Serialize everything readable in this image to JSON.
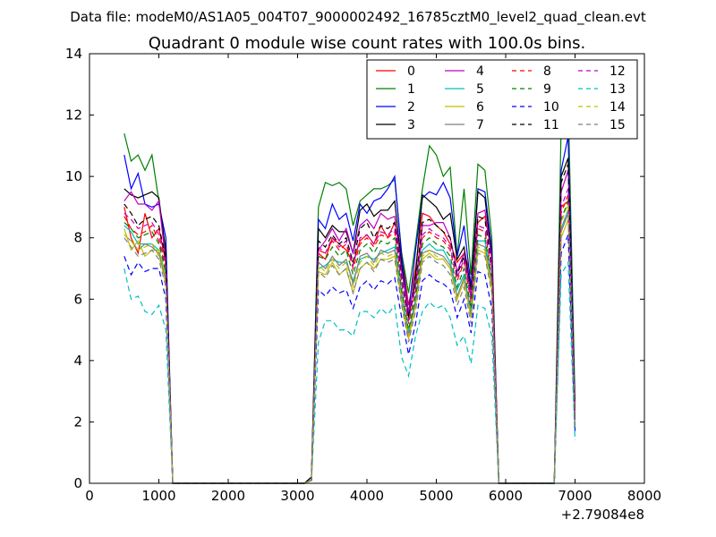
{
  "suptitle": "Data file: modeM0/AS1A05_004T07_9000002492_16785cztM0_level2_quad_clean.evt",
  "chart_data": {
    "type": "line",
    "title": "Quadrant 0 module wise count rates with 100.0s bins.",
    "xlabel": "",
    "ylabel": "",
    "xlim": [
      0,
      8000
    ],
    "ylim": [
      0,
      14
    ],
    "x_offset_label": "+2.79084e8",
    "xticks": [
      0,
      1000,
      2000,
      3000,
      4000,
      5000,
      6000,
      7000,
      8000
    ],
    "yticks": [
      0,
      2,
      4,
      6,
      8,
      10,
      12,
      14
    ],
    "grid": false,
    "legend_position": "top-right",
    "legend_columns": 4,
    "x": [
      500,
      600,
      700,
      800,
      900,
      1000,
      1100,
      1200,
      1300,
      1400,
      1500,
      1600,
      1700,
      1800,
      1900,
      2000,
      2100,
      2200,
      2300,
      2400,
      2500,
      2600,
      2700,
      2800,
      2900,
      3000,
      3100,
      3200,
      3300,
      3400,
      3500,
      3600,
      3700,
      3800,
      3900,
      4000,
      4100,
      4200,
      4300,
      4400,
      4500,
      4600,
      4700,
      4800,
      4900,
      5000,
      5100,
      5200,
      5300,
      5400,
      5500,
      5600,
      5700,
      5800,
      5900,
      6000,
      6100,
      6200,
      6300,
      6400,
      6500,
      6600,
      6700,
      6800,
      6900,
      7000
    ],
    "series": [
      {
        "name": "0",
        "color": "#ff0000",
        "dash": "solid",
        "values": [
          9.0,
          8.0,
          7.5,
          8.8,
          8.0,
          8.3,
          7.2,
          0,
          0,
          0,
          0,
          0,
          0,
          0,
          0,
          0,
          0,
          0,
          0,
          0,
          0,
          0,
          0,
          0,
          0,
          0,
          0,
          0.1,
          7.5,
          7.3,
          8.0,
          7.8,
          7.6,
          7.2,
          7.9,
          8.1,
          7.8,
          8.4,
          8.0,
          8.5,
          7.5,
          5.8,
          7.0,
          8.8,
          8.7,
          8.4,
          8.2,
          7.8,
          7.2,
          7.5,
          6.8,
          8.5,
          8.7,
          7.5,
          0,
          0,
          0,
          0,
          0,
          0,
          0,
          0,
          0,
          9.0,
          9.2,
          2.5
        ]
      },
      {
        "name": "1",
        "color": "#008000",
        "dash": "solid",
        "values": [
          11.4,
          10.5,
          10.7,
          10.2,
          10.7,
          9.2,
          7.6,
          0,
          0,
          0,
          0,
          0,
          0,
          0,
          0,
          0,
          0,
          0,
          0,
          0,
          0,
          0,
          0,
          0,
          0,
          0,
          0,
          0.2,
          9.0,
          9.8,
          9.7,
          9.8,
          9.6,
          8.4,
          9.2,
          9.4,
          9.6,
          9.6,
          9.7,
          9.9,
          7.5,
          6.2,
          7.8,
          9.6,
          11.0,
          10.7,
          10.0,
          10.3,
          7.4,
          9.6,
          6.8,
          10.4,
          10.2,
          8.0,
          0,
          0,
          0,
          0,
          0,
          0,
          0,
          0,
          0,
          11.7,
          12.5,
          2.7
        ]
      },
      {
        "name": "2",
        "color": "#0000ff",
        "dash": "solid",
        "values": [
          10.7,
          9.6,
          10.1,
          9.1,
          9.0,
          9.1,
          8.0,
          0,
          0,
          0,
          0,
          0,
          0,
          0,
          0,
          0,
          0,
          0,
          0,
          0,
          0,
          0,
          0,
          0,
          0,
          0,
          0,
          0.2,
          8.6,
          8.3,
          9.1,
          8.6,
          8.8,
          7.9,
          9.1,
          8.8,
          9.2,
          9.3,
          9.6,
          10.0,
          7.4,
          5.5,
          7.6,
          9.3,
          9.5,
          9.4,
          9.8,
          9.3,
          7.4,
          8.4,
          6.4,
          9.6,
          9.5,
          7.6,
          0,
          0,
          0,
          0,
          0,
          0,
          0,
          0,
          0,
          10.2,
          11.3,
          2.3
        ]
      },
      {
        "name": "3",
        "color": "#000000",
        "dash": "solid",
        "values": [
          9.6,
          9.4,
          9.3,
          9.4,
          9.5,
          9.3,
          7.5,
          0,
          0,
          0,
          0,
          0,
          0,
          0,
          0,
          0,
          0,
          0,
          0,
          0,
          0,
          0,
          0,
          0,
          0,
          0,
          0,
          0.2,
          8.3,
          8.0,
          8.4,
          8.2,
          8.2,
          7.5,
          8.9,
          9.1,
          8.7,
          8.9,
          8.9,
          9.2,
          7.1,
          5.4,
          6.8,
          9.4,
          9.2,
          9.0,
          8.6,
          8.8,
          7.3,
          7.7,
          6.3,
          9.5,
          9.3,
          7.4,
          0,
          0,
          0,
          0,
          0,
          0,
          0,
          0,
          0,
          10.0,
          10.6,
          2.2
        ]
      },
      {
        "name": "4",
        "color": "#bf00bf",
        "dash": "solid",
        "values": [
          9.2,
          9.5,
          9.1,
          9.1,
          8.9,
          9.2,
          7.2,
          0,
          0,
          0,
          0,
          0,
          0,
          0,
          0,
          0,
          0,
          0,
          0,
          0,
          0,
          0,
          0,
          0,
          0,
          0,
          0,
          0.1,
          7.6,
          7.9,
          8.3,
          7.9,
          8.3,
          7.5,
          8.4,
          8.6,
          8.3,
          8.8,
          8.6,
          8.7,
          6.9,
          5.6,
          6.5,
          8.4,
          8.4,
          8.5,
          8.5,
          8.0,
          6.9,
          7.5,
          6.1,
          8.8,
          8.9,
          7.3,
          0,
          0,
          0,
          0,
          0,
          0,
          0,
          0,
          0,
          9.5,
          10.2,
          2.2
        ]
      },
      {
        "name": "5",
        "color": "#00bfbf",
        "dash": "solid",
        "values": [
          8.4,
          8.2,
          7.8,
          7.8,
          7.8,
          7.6,
          6.8,
          0,
          0,
          0,
          0,
          0,
          0,
          0,
          0,
          0,
          0,
          0,
          0,
          0,
          0,
          0,
          0,
          0,
          0,
          0,
          0,
          0.1,
          7.0,
          7.1,
          7.3,
          7.2,
          7.2,
          6.6,
          7.3,
          7.4,
          7.3,
          7.5,
          7.6,
          7.7,
          6.2,
          4.9,
          6.0,
          7.6,
          7.8,
          7.6,
          7.6,
          7.2,
          6.3,
          6.8,
          5.6,
          7.9,
          7.9,
          6.6,
          0,
          0,
          0,
          0,
          0,
          0,
          0,
          0,
          0,
          8.3,
          8.9,
          1.9
        ]
      },
      {
        "name": "6",
        "color": "#bfbf00",
        "dash": "solid",
        "values": [
          8.3,
          7.6,
          7.9,
          7.4,
          7.6,
          7.6,
          6.7,
          0,
          0,
          0,
          0,
          0,
          0,
          0,
          0,
          0,
          0,
          0,
          0,
          0,
          0,
          0,
          0,
          0,
          0,
          0,
          0,
          0.1,
          6.9,
          6.8,
          7.2,
          6.8,
          7.0,
          6.2,
          7.0,
          7.2,
          7.0,
          7.3,
          7.3,
          7.4,
          5.9,
          4.7,
          5.8,
          7.3,
          7.5,
          7.3,
          7.3,
          7.0,
          6.0,
          6.6,
          5.4,
          7.6,
          7.5,
          6.3,
          0,
          0,
          0,
          0,
          0,
          0,
          0,
          0,
          0,
          8.0,
          8.6,
          1.8
        ]
      },
      {
        "name": "7",
        "color": "#7f7f7f",
        "dash": "solid",
        "values": [
          8.1,
          7.9,
          7.6,
          7.8,
          7.7,
          7.5,
          6.6,
          0,
          0,
          0,
          0,
          0,
          0,
          0,
          0,
          0,
          0,
          0,
          0,
          0,
          0,
          0,
          0,
          0,
          0,
          0,
          0,
          0.1,
          7.2,
          7.0,
          7.4,
          7.1,
          7.3,
          6.5,
          7.4,
          7.5,
          7.2,
          7.6,
          7.5,
          7.6,
          6.0,
          4.8,
          5.9,
          7.5,
          7.6,
          7.5,
          7.4,
          7.1,
          6.1,
          6.7,
          5.5,
          7.8,
          7.7,
          6.5,
          0,
          0,
          0,
          0,
          0,
          0,
          0,
          0,
          0,
          8.2,
          8.8,
          1.9
        ]
      },
      {
        "name": "8",
        "color": "#ff0000",
        "dash": "dashed",
        "values": [
          8.7,
          8.3,
          8.1,
          8.2,
          8.4,
          7.9,
          7.0,
          0,
          0,
          0,
          0,
          0,
          0,
          0,
          0,
          0,
          0,
          0,
          0,
          0,
          0,
          0,
          0,
          0,
          0,
          0,
          0,
          0.1,
          7.6,
          7.5,
          7.9,
          7.6,
          7.8,
          7.0,
          7.8,
          8.0,
          7.7,
          8.1,
          8.0,
          8.2,
          6.5,
          5.2,
          6.3,
          8.0,
          8.2,
          8.0,
          7.9,
          7.6,
          6.6,
          7.2,
          5.9,
          8.3,
          8.2,
          6.9,
          0,
          0,
          0,
          0,
          0,
          0,
          0,
          0,
          0,
          8.8,
          9.4,
          2.0
        ]
      },
      {
        "name": "9",
        "color": "#008000",
        "dash": "dashed",
        "values": [
          8.5,
          8.3,
          8.0,
          8.1,
          8.2,
          7.8,
          6.9,
          0,
          0,
          0,
          0,
          0,
          0,
          0,
          0,
          0,
          0,
          0,
          0,
          0,
          0,
          0,
          0,
          0,
          0,
          0,
          0,
          0.1,
          7.4,
          7.3,
          7.7,
          7.4,
          7.6,
          6.8,
          7.6,
          7.8,
          7.5,
          7.9,
          7.8,
          8.0,
          6.3,
          5.0,
          6.1,
          7.8,
          8.0,
          7.8,
          7.7,
          7.4,
          6.4,
          7.0,
          5.7,
          8.1,
          8.0,
          6.7,
          0,
          0,
          0,
          0,
          0,
          0,
          0,
          0,
          0,
          8.6,
          9.2,
          1.9
        ]
      },
      {
        "name": "10",
        "color": "#0000ff",
        "dash": "dashed",
        "values": [
          7.4,
          6.8,
          7.2,
          6.9,
          7.0,
          7.0,
          6.0,
          0,
          0,
          0,
          0,
          0,
          0,
          0,
          0,
          0,
          0,
          0,
          0,
          0,
          0,
          0,
          0,
          0,
          0,
          0,
          0,
          0.1,
          6.3,
          6.1,
          6.4,
          6.2,
          6.3,
          5.7,
          6.4,
          6.6,
          6.3,
          6.6,
          6.5,
          6.7,
          5.4,
          4.2,
          5.2,
          6.6,
          6.8,
          6.6,
          6.5,
          6.3,
          5.4,
          6.0,
          4.9,
          6.9,
          6.8,
          5.7,
          0,
          0,
          0,
          0,
          0,
          0,
          0,
          0,
          0,
          7.5,
          8.1,
          1.7
        ]
      },
      {
        "name": "11",
        "color": "#000000",
        "dash": "dashed",
        "values": [
          9.1,
          8.8,
          8.4,
          8.6,
          8.7,
          8.4,
          7.3,
          0,
          0,
          0,
          0,
          0,
          0,
          0,
          0,
          0,
          0,
          0,
          0,
          0,
          0,
          0,
          0,
          0,
          0,
          0,
          0,
          0.1,
          7.9,
          7.7,
          8.1,
          7.8,
          8.0,
          7.2,
          8.3,
          8.5,
          8.0,
          8.4,
          8.3,
          8.5,
          6.7,
          5.3,
          6.5,
          8.5,
          8.6,
          8.4,
          8.2,
          8.0,
          6.8,
          7.4,
          6.0,
          8.7,
          8.6,
          7.1,
          0,
          0,
          0,
          0,
          0,
          0,
          0,
          0,
          0,
          9.8,
          10.4,
          2.1
        ]
      },
      {
        "name": "12",
        "color": "#bf00bf",
        "dash": "dashed",
        "values": [
          8.8,
          8.6,
          8.3,
          8.4,
          8.5,
          8.1,
          7.1,
          0,
          0,
          0,
          0,
          0,
          0,
          0,
          0,
          0,
          0,
          0,
          0,
          0,
          0,
          0,
          0,
          0,
          0,
          0,
          0,
          0.1,
          7.7,
          7.5,
          8.0,
          7.7,
          7.9,
          7.1,
          8.0,
          8.1,
          7.8,
          8.2,
          8.1,
          8.3,
          6.6,
          5.3,
          6.4,
          8.1,
          8.3,
          8.1,
          8.0,
          7.7,
          6.7,
          7.3,
          6.0,
          8.4,
          8.3,
          7.0,
          0,
          0,
          0,
          0,
          0,
          0,
          0,
          0,
          0,
          9.0,
          9.6,
          2.0
        ]
      },
      {
        "name": "13",
        "color": "#00bfbf",
        "dash": "dashed",
        "values": [
          7.0,
          6.0,
          6.1,
          5.6,
          5.5,
          5.8,
          5.0,
          0,
          0,
          0,
          0,
          0,
          0,
          0,
          0,
          0,
          0,
          0,
          0,
          0,
          0,
          0,
          0,
          0,
          0,
          0,
          0,
          0.1,
          4.6,
          5.3,
          5.3,
          5.0,
          5.0,
          4.8,
          5.6,
          5.6,
          5.4,
          5.7,
          5.5,
          5.8,
          4.1,
          3.5,
          4.8,
          5.6,
          5.9,
          5.7,
          5.8,
          5.4,
          4.5,
          4.8,
          3.9,
          5.8,
          5.7,
          4.8,
          0,
          0,
          0,
          0,
          0,
          0,
          0,
          0,
          0,
          6.8,
          7.2,
          1.4
        ]
      },
      {
        "name": "14",
        "color": "#bfbf00",
        "dash": "dashed",
        "values": [
          8.1,
          7.9,
          7.6,
          7.7,
          7.8,
          7.4,
          6.5,
          0,
          0,
          0,
          0,
          0,
          0,
          0,
          0,
          0,
          0,
          0,
          0,
          0,
          0,
          0,
          0,
          0,
          0,
          0,
          0,
          0.1,
          7.1,
          6.9,
          7.3,
          7.0,
          7.2,
          6.4,
          7.2,
          7.4,
          7.1,
          7.5,
          7.4,
          7.5,
          6.0,
          4.8,
          5.8,
          7.4,
          7.6,
          7.4,
          7.3,
          7.0,
          6.0,
          6.6,
          5.4,
          7.7,
          7.6,
          6.4,
          0,
          0,
          0,
          0,
          0,
          0,
          0,
          0,
          0,
          8.5,
          9.1,
          1.9
        ]
      },
      {
        "name": "15",
        "color": "#7f7f7f",
        "dash": "dashed",
        "values": [
          8.0,
          7.7,
          7.4,
          7.5,
          7.6,
          7.3,
          6.4,
          0,
          0,
          0,
          0,
          0,
          0,
          0,
          0,
          0,
          0,
          0,
          0,
          0,
          0,
          0,
          0,
          0,
          0,
          0,
          0,
          0.1,
          6.9,
          6.7,
          7.1,
          6.8,
          7.0,
          6.2,
          7.0,
          7.2,
          6.9,
          7.3,
          7.2,
          7.3,
          5.8,
          4.6,
          5.6,
          7.2,
          7.4,
          7.2,
          7.1,
          6.8,
          5.8,
          6.4,
          5.2,
          7.5,
          7.4,
          6.2,
          0,
          0,
          0,
          0,
          0,
          0,
          0,
          0,
          0,
          8.3,
          8.9,
          1.8
        ]
      }
    ]
  }
}
